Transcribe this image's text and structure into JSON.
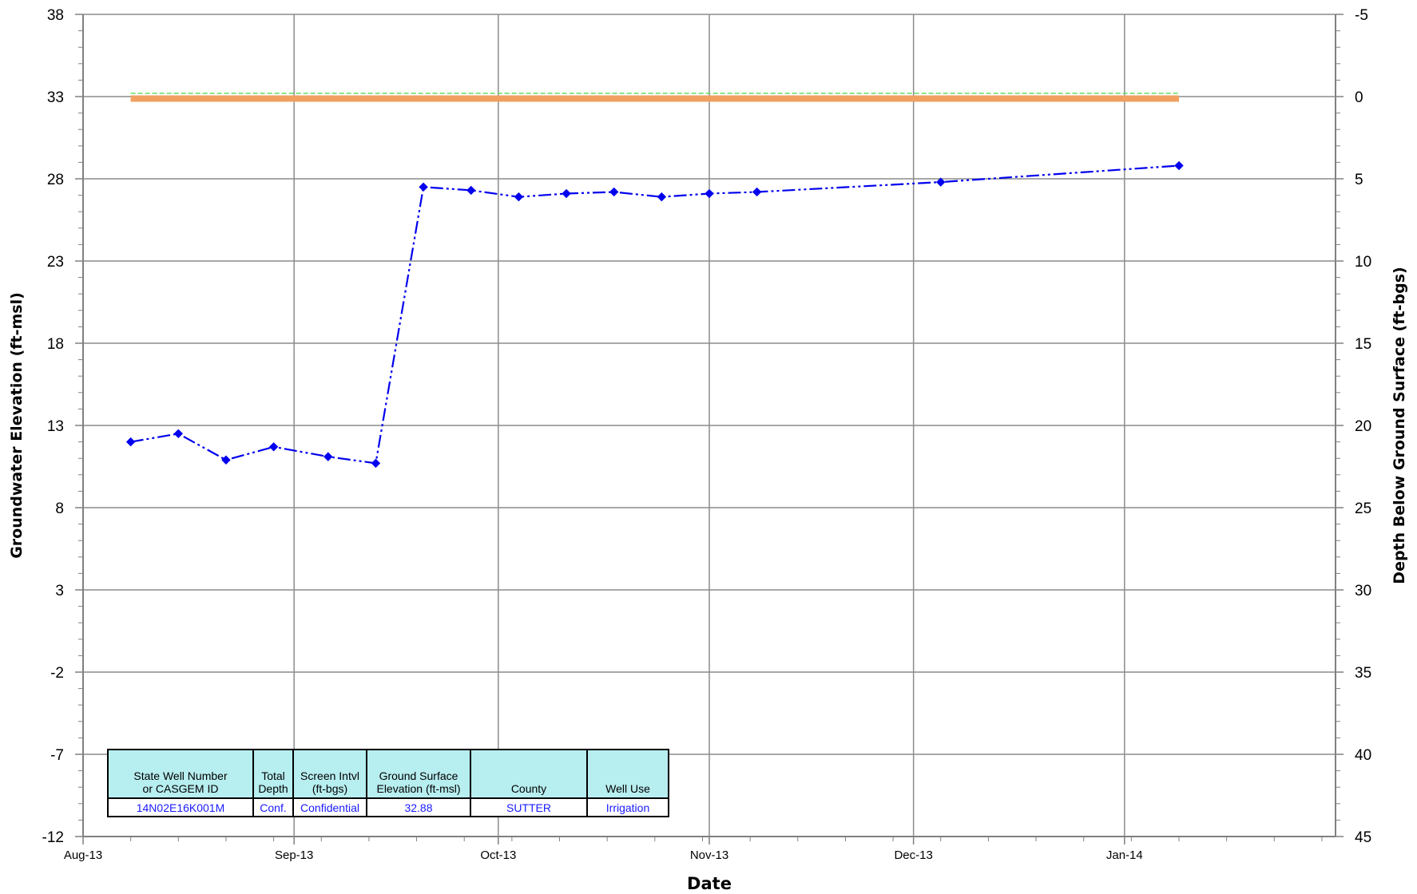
{
  "chart_data": {
    "type": "line",
    "xlabel": "Date",
    "ylabel_left": "Groundwater Elevation (ft-msl)",
    "ylabel_right": "Depth Below Ground Surface (ft-bgs)",
    "x_tick_labels": [
      "Aug-13",
      "Sep-13",
      "Oct-13",
      "Nov-13",
      "Dec-13",
      "Jan-14"
    ],
    "x_tick_dates": [
      "2013-08-01",
      "2013-09-01",
      "2013-10-01",
      "2013-11-01",
      "2013-12-01",
      "2014-01-01"
    ],
    "xlim": [
      "2013-08-01",
      "2014-02-01"
    ],
    "y_left_ticks": [
      38,
      33,
      28,
      23,
      18,
      13,
      8,
      3,
      -2,
      -7,
      -12
    ],
    "ylim_left": [
      -12,
      38
    ],
    "y_right_ticks": [
      -5,
      0,
      5,
      10,
      15,
      20,
      25,
      30,
      35,
      40,
      45
    ],
    "ylim_right": [
      45,
      -5
    ],
    "grid": true,
    "series": [
      {
        "style": "dash-dot-dot",
        "color": "#0000ee",
        "marker": "diamond",
        "points": [
          {
            "date": "2013-08-08",
            "y": 12.0
          },
          {
            "date": "2013-08-15",
            "y": 12.5
          },
          {
            "date": "2013-08-22",
            "y": 10.9
          },
          {
            "date": "2013-08-29",
            "y": 11.7
          },
          {
            "date": "2013-09-06",
            "y": 11.1
          },
          {
            "date": "2013-09-13",
            "y": 10.7
          },
          {
            "date": "2013-09-20",
            "y": 27.5
          },
          {
            "date": "2013-09-27",
            "y": 27.3
          },
          {
            "date": "2013-10-04",
            "y": 26.9
          },
          {
            "date": "2013-10-11",
            "y": 27.1
          },
          {
            "date": "2013-10-18",
            "y": 27.2
          },
          {
            "date": "2013-10-25",
            "y": 26.9
          },
          {
            "date": "2013-11-01",
            "y": 27.1
          },
          {
            "date": "2013-11-08",
            "y": 27.2
          },
          {
            "date": "2013-12-05",
            "y": 27.8
          },
          {
            "date": "2014-01-09",
            "y": 28.8
          }
        ]
      }
    ],
    "reference_lines": [
      {
        "kind": "ground-surface",
        "y": 32.88,
        "color": "#f0a060",
        "x_start": "2013-08-08",
        "x_end": "2014-01-09"
      },
      {
        "kind": "dashed-reference",
        "y": 33.2,
        "color": "#66dd66",
        "x_start": "2013-08-08",
        "x_end": "2014-01-09"
      }
    ]
  },
  "well_table": {
    "headers": {
      "well_id_line1": "State Well Number",
      "well_id_line2": "or CASGEM ID",
      "depth_line1": "Total",
      "depth_line2": "Depth",
      "screen_line1": "Screen Intvl",
      "screen_line2": "(ft-bgs)",
      "gse_line1": "Ground Surface",
      "gse_line2": "Elevation (ft-msl)",
      "county": "County",
      "use": "Well Use"
    },
    "values": {
      "well_id": "14N02E16K001M",
      "depth": "Conf.",
      "screen": "Confidential",
      "gse": "32.88",
      "county": "SUTTER",
      "use": "Irrigation"
    }
  }
}
